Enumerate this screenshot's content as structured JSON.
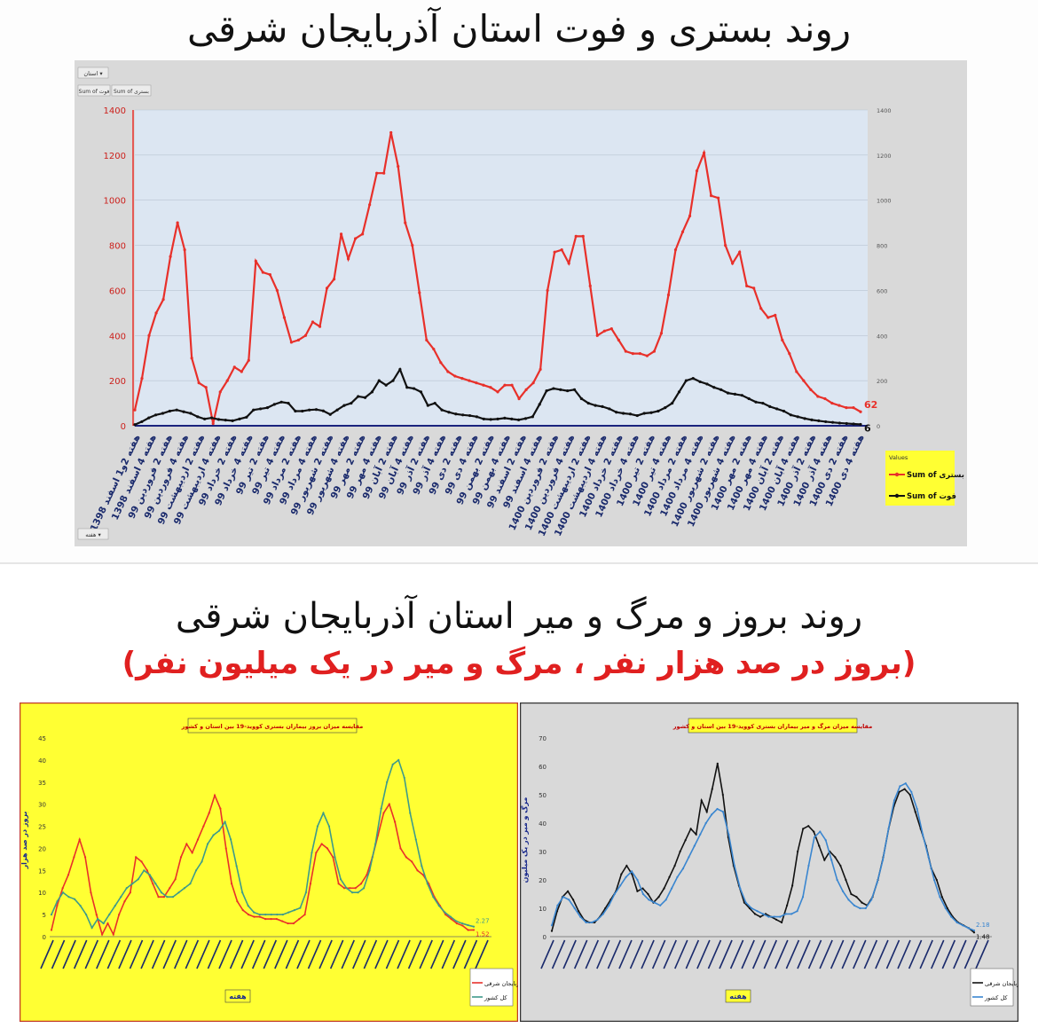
{
  "page": {
    "title_top": "روند بستری و فوت استان آذربایجان شرقی",
    "title_bottom": "روند بروز و مرگ و میر استان آذربایجان شرقی",
    "subtitle_bottom": "(بروز در صد هزار نفر ، مرگ و میر در یک میلیون نفر)"
  },
  "colors": {
    "red": "#e8302a",
    "black": "#111111",
    "blue": "#3a86d0",
    "teal": "#3e9a8a",
    "yellow": "#ffff33",
    "panelBlue": "#dce6f2",
    "gray": "#d9d9d9"
  },
  "chart_data": [
    {
      "type": "line",
      "title": "",
      "filter_labels": [
        "استان ▾",
        "Sum of فوت",
        "Sum of بستری"
      ],
      "xlabel": "هفته ▾",
      "ylim": [
        0,
        1400
      ],
      "y_ticks": [
        0,
        200,
        400,
        600,
        800,
        1000,
        1200,
        1400
      ],
      "y2_ticks": [
        0,
        200,
        400,
        600,
        800,
        1000,
        1200,
        1400
      ],
      "x_tick_labels": [
        "هفته 2و1 اسفند 1398",
        "هفته 4 اسفند 1398",
        "هفته 2 فروردین 99",
        "هفته 4 فروردین 99",
        "هفته 2 اردیبهشت 99",
        "هفته 4 اردیبهشت 99",
        "هفته 2 خرداد 99",
        "هفته 4 خرداد 99",
        "هفته 2 تیر 99",
        "هفته 4 تیر 99",
        "هفته 2 مرداد 99",
        "هفته 4 مرداد 99",
        "هفته 2 شهریور 99",
        "هفته 4 شهریور 99",
        "هفته 2 مهر 99",
        "هفته 4 مهر 99",
        "هفته 2 آبان 99",
        "هفته 4 آبان 99",
        "هفته 2 آذر 99",
        "هفته 4 آذر 99",
        "هفته 2 دی 99",
        "هفته 4 دی 99",
        "هفته 2 بهمن 99",
        "هفته 4 بهمن 99",
        "هفته 2 اسفند 99",
        "هفته 4 اسفند 99",
        "هفته 2 فروردین 1400",
        "هفته 4 فروردین 1400",
        "هفته 2 اردیبهشت 1400",
        "هفته 4 اردیبهشت 1400",
        "هفته 2 خرداد 1400",
        "هفته 4 خرداد 1400",
        "هفته 2 تیر 1400",
        "هفته 4 تیر 1400",
        "هفته 2 مرداد 1400",
        "هفته 4 مرداد 1400",
        "هفته 2 شهریور 1400",
        "هفته 4 شهریور 1400",
        "هفته 2 مهر 1400",
        "هفته 4 مهر 1400",
        "هفته 2 آبان 1400",
        "هفته 4 آبان 1400",
        "هفته 2 آذر 1400",
        "هفته 4 آذر 1400",
        "هفته 2 دی 1400",
        "هفته 4 دی 1400"
      ],
      "legend_title": "Values",
      "series": [
        {
          "name": "Sum of بستری",
          "color": "#e8302a",
          "end_label": "62",
          "values": [
            70,
            210,
            400,
            500,
            560,
            750,
            900,
            780,
            300,
            190,
            170,
            10,
            150,
            200,
            260,
            240,
            290,
            730,
            680,
            670,
            600,
            480,
            370,
            380,
            400,
            460,
            440,
            610,
            650,
            850,
            740,
            830,
            850,
            980,
            1120,
            1120,
            1300,
            1150,
            900,
            800,
            590,
            380,
            340,
            280,
            240,
            220,
            210,
            200,
            190,
            180,
            170,
            150,
            180,
            180,
            120,
            160,
            190,
            250,
            600,
            770,
            780,
            720,
            840,
            840,
            620,
            400,
            420,
            430,
            380,
            330,
            320,
            320,
            310,
            330,
            410,
            580,
            780,
            860,
            930,
            1130,
            1210,
            1020,
            1010,
            800,
            720,
            770,
            620,
            610,
            520,
            480,
            490,
            380,
            320,
            240,
            200,
            160,
            130,
            120,
            100,
            90,
            80,
            80,
            62
          ]
        },
        {
          "name": "Sum of فوت",
          "color": "#111111",
          "end_label": "6",
          "values": [
            5,
            18,
            35,
            48,
            55,
            65,
            70,
            62,
            55,
            40,
            30,
            35,
            28,
            25,
            22,
            30,
            38,
            70,
            75,
            80,
            95,
            105,
            100,
            65,
            65,
            70,
            72,
            66,
            50,
            70,
            90,
            100,
            130,
            125,
            150,
            200,
            180,
            200,
            250,
            170,
            165,
            150,
            90,
            100,
            70,
            60,
            52,
            48,
            45,
            40,
            30,
            28,
            30,
            34,
            30,
            26,
            32,
            40,
            95,
            155,
            165,
            160,
            155,
            160,
            120,
            100,
            90,
            85,
            75,
            60,
            55,
            52,
            45,
            55,
            58,
            65,
            80,
            100,
            150,
            200,
            210,
            195,
            185,
            170,
            160,
            145,
            140,
            135,
            120,
            105,
            100,
            85,
            75,
            65,
            48,
            40,
            32,
            26,
            22,
            18,
            15,
            12,
            10,
            8,
            6
          ]
        }
      ]
    },
    {
      "type": "line",
      "title": "مقایسه میزان بروز بیماران بستری کووید-19 بین استان و کشور",
      "ylabel": "بروز در صد هزار",
      "xlabel": "هفته",
      "ylim": [
        0,
        45
      ],
      "y_ticks": [
        0,
        5,
        10,
        15,
        20,
        25,
        30,
        35,
        40,
        45
      ],
      "end_labels": [
        "2.27",
        "1.52"
      ],
      "series": [
        {
          "name": "آذربایجان شرقی",
          "color": "#e8302a",
          "values": [
            1.5,
            7,
            11,
            14,
            18,
            22,
            18,
            10,
            5,
            0.5,
            3,
            0.5,
            5,
            8,
            10,
            18,
            17,
            15,
            12,
            9,
            9,
            11,
            13,
            18,
            21,
            19,
            22,
            25,
            28,
            32,
            29,
            20,
            12,
            8,
            6,
            5,
            4.5,
            4.5,
            4,
            4,
            4,
            3.5,
            3,
            3,
            4,
            5,
            12,
            19,
            21,
            20,
            18,
            12,
            11,
            11,
            11,
            12,
            14,
            18,
            23,
            28,
            30,
            26,
            20,
            18,
            17,
            15,
            14,
            12,
            9,
            7,
            5,
            4,
            3,
            2.5,
            1.5,
            1.52
          ]
        },
        {
          "name": "کل کشور",
          "color": "#3e9a8a",
          "values": [
            5,
            8,
            10,
            9,
            8.5,
            7,
            5,
            2,
            4,
            3,
            5,
            7,
            9,
            11,
            12,
            13,
            15,
            14,
            12,
            10,
            9,
            9,
            10,
            11,
            12,
            15,
            17,
            21,
            23,
            24,
            26,
            22,
            16,
            10,
            7,
            5.5,
            5,
            5,
            5,
            5,
            5,
            5.5,
            6,
            6.5,
            10,
            19,
            25,
            28,
            25,
            18,
            13,
            11,
            10,
            10,
            11,
            15,
            21,
            29,
            35,
            39,
            40,
            36,
            28,
            22,
            16,
            12,
            9,
            7,
            5.5,
            4.5,
            3.5,
            3,
            2.6,
            2.27
          ]
        }
      ]
    },
    {
      "type": "line",
      "title": "مقایسه میزان مرگ و میر بیماران بستری کووید-19 بین استان و کشور",
      "ylabel": "مرگ و میر در یک میلیون",
      "xlabel": "هفته",
      "ylim": [
        0,
        70
      ],
      "y_ticks": [
        0,
        10,
        20,
        30,
        40,
        50,
        60,
        70
      ],
      "end_labels": [
        "2.18",
        "1.48"
      ],
      "series": [
        {
          "name": "آذربایجان شرقی",
          "color": "#111111",
          "values": [
            2,
            9,
            14,
            16,
            13,
            9,
            6,
            5,
            5,
            7,
            10,
            13,
            16,
            22,
            25,
            22,
            16,
            17,
            15,
            12,
            14,
            17,
            21,
            25,
            30,
            34,
            38,
            36,
            48,
            44,
            52,
            61,
            50,
            35,
            25,
            18,
            12,
            10,
            8,
            7,
            8,
            7,
            6,
            5,
            11,
            18,
            30,
            38,
            39,
            37,
            32,
            27,
            30,
            28,
            25,
            20,
            15,
            14,
            12,
            11,
            14,
            20,
            28,
            38,
            46,
            51,
            52,
            50,
            44,
            38,
            32,
            24,
            20,
            14,
            10,
            7,
            5,
            4,
            3,
            1.48
          ]
        },
        {
          "name": "کل کشور",
          "color": "#3a86d0",
          "values": [
            4,
            11,
            14,
            13,
            10,
            7,
            5,
            5,
            6,
            8,
            11,
            15,
            18,
            21,
            23,
            20,
            15,
            13,
            12,
            11,
            13,
            17,
            21,
            24,
            28,
            32,
            36,
            40,
            43,
            45,
            44,
            36,
            25,
            17,
            12,
            10,
            9,
            8,
            7,
            7,
            7,
            8,
            8,
            9,
            14,
            25,
            35,
            37,
            34,
            27,
            20,
            16,
            13,
            11,
            10,
            10,
            13,
            19,
            27,
            38,
            48,
            53,
            54,
            51,
            45,
            36,
            28,
            20,
            14,
            10,
            7,
            5,
            4,
            3,
            2.18
          ]
        }
      ]
    }
  ]
}
